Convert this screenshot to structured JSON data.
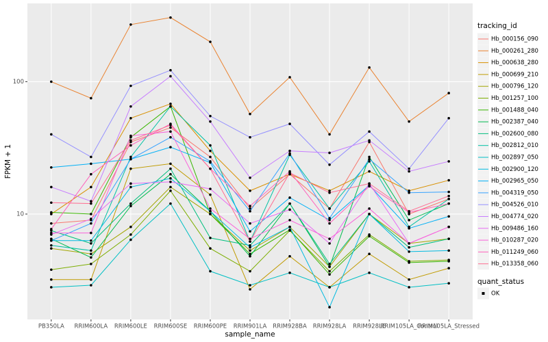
{
  "chart_data": {
    "type": "line",
    "x_label": "sample_name",
    "y_label": "FPKM + 1",
    "log_y": true,
    "grid": true,
    "legend_title": "tracking_id",
    "legend_position": "right",
    "point_legend": {
      "title": "quant_status",
      "labels": [
        "OK"
      ],
      "color": "#000000"
    },
    "categories": [
      "PB350LA",
      "RRIM600LA",
      "RRIM600LE",
      "RRIM600SE",
      "RRIM600PE",
      "RRIM901LA",
      "RRIM928BA",
      "RRIM928LA",
      "RRIM928LE",
      "RRIM105LA_Control",
      "RRIM105LA_Stressed"
    ],
    "ylim": [
      1.6,
      390
    ],
    "yticks": [
      10,
      100
    ],
    "series": [
      {
        "name": "Hb_000156_090",
        "color": "#F8766D",
        "values": [
          8.5,
          9,
          35,
          45,
          27,
          11,
          20,
          11,
          35,
          10,
          13
        ]
      },
      {
        "name": "Hb_000261_280",
        "color": "#EA8331",
        "values": [
          100,
          75,
          270,
          305,
          200,
          57,
          108,
          40,
          128,
          50,
          82
        ]
      },
      {
        "name": "Hb_000638_280",
        "color": "#D89000",
        "values": [
          10,
          16,
          53,
          68,
          30,
          15,
          20,
          15,
          21,
          15,
          18
        ]
      },
      {
        "name": "Hb_000699_210",
        "color": "#C09B00",
        "values": [
          3.2,
          3.2,
          22,
          24,
          14,
          2.7,
          4.8,
          2.8,
          5,
          3.2,
          3.9
        ]
      },
      {
        "name": "Hb_000796_120",
        "color": "#A3A500",
        "values": [
          5.5,
          5,
          8,
          16,
          10,
          5.3,
          8,
          4,
          10,
          6,
          6.5
        ]
      },
      {
        "name": "Hb_001257_100",
        "color": "#7CAE00",
        "values": [
          3.8,
          4.2,
          7,
          15,
          5.5,
          3.7,
          7.5,
          3.7,
          7,
          4.4,
          4.5
        ]
      },
      {
        "name": "Hb_001488_040",
        "color": "#39B600",
        "values": [
          10.3,
          10,
          38,
          65,
          10,
          5,
          7.6,
          3.5,
          6.8,
          4.3,
          4.4
        ]
      },
      {
        "name": "Hb_002387_040",
        "color": "#00BB4E",
        "values": [
          6.5,
          4.7,
          11.5,
          20,
          10.5,
          4.8,
          12,
          4,
          27,
          9,
          12
        ]
      },
      {
        "name": "Hb_002600_080",
        "color": "#00BF7D",
        "values": [
          7.5,
          6,
          12,
          22,
          6.6,
          5.8,
          12,
          4.2,
          10,
          5.6,
          6.5
        ]
      },
      {
        "name": "Hb_002812_010",
        "color": "#00C1A3",
        "values": [
          5.8,
          5.3,
          27,
          65,
          33,
          6.2,
          28,
          11,
          25,
          8,
          13
        ]
      },
      {
        "name": "Hb_002897_050",
        "color": "#00BFC4",
        "values": [
          2.8,
          2.9,
          6.4,
          12,
          3.7,
          2.9,
          3.6,
          2.8,
          3.6,
          2.8,
          3
        ]
      },
      {
        "name": "Hb_002900_120",
        "color": "#00BAE0",
        "values": [
          6.3,
          6.3,
          16,
          18.6,
          10.5,
          5.6,
          8,
          1.98,
          10,
          5.2,
          5.3
        ]
      },
      {
        "name": "Hb_002965_050",
        "color": "#00B0F6",
        "values": [
          22.5,
          24,
          26,
          32,
          24.5,
          7.4,
          13.3,
          9,
          16.5,
          7.8,
          9.6
        ]
      },
      {
        "name": "Hb_004319_050",
        "color": "#35A2FF",
        "values": [
          6.3,
          8.5,
          26,
          38,
          25,
          10.5,
          28.7,
          9.3,
          26,
          14.5,
          14.7
        ]
      },
      {
        "name": "Hb_004526_010",
        "color": "#9590FF",
        "values": [
          40,
          27,
          93,
          122,
          55,
          38,
          48,
          23.6,
          42,
          22,
          53
        ]
      },
      {
        "name": "Hb_004774_020",
        "color": "#C77CFF",
        "values": [
          16,
          12.5,
          65,
          110,
          50,
          18.8,
          30,
          29,
          36,
          21,
          25
        ]
      },
      {
        "name": "Hb_009486_160",
        "color": "#E76BF3",
        "values": [
          7,
          9.2,
          17,
          17.5,
          15.5,
          8.5,
          10.8,
          6,
          17,
          6,
          8
        ]
      },
      {
        "name": "Hb_010287_020",
        "color": "#FA62DB",
        "values": [
          7.2,
          7.2,
          39,
          42,
          11,
          6.5,
          9,
          6.5,
          11,
          6,
          8
        ]
      },
      {
        "name": "Hb_011249_060",
        "color": "#FF62BC",
        "values": [
          7.7,
          20,
          33,
          48,
          22,
          11.5,
          21,
          8.5,
          16.2,
          10.3,
          12
        ]
      },
      {
        "name": "Hb_013358_060",
        "color": "#FF6C91",
        "values": [
          12.2,
          12,
          36,
          47,
          22,
          6.2,
          20.5,
          14.5,
          17,
          10.5,
          13.7
        ]
      }
    ]
  }
}
